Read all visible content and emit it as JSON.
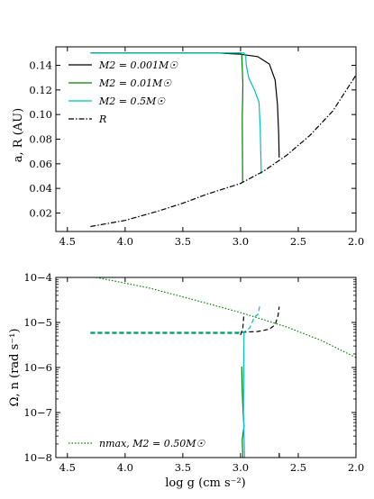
{
  "chart_data": [
    {
      "type": "line",
      "panel": "top",
      "ylabel": "a, R (AU)",
      "xlabel": "",
      "xlim": [
        4.6,
        2.0
      ],
      "ylim": [
        0.005,
        0.155
      ],
      "xticks": [
        4.5,
        4.0,
        3.5,
        3.0,
        2.5,
        2.0
      ],
      "xtick_labels": [
        "4.5",
        "4.0",
        "3.5",
        "3.0",
        "2.5",
        "2.0"
      ],
      "yticks": [
        0.02,
        0.04,
        0.06,
        0.08,
        0.1,
        0.12,
        0.14
      ],
      "ytick_labels": [
        "0.02",
        "0.04",
        "0.06",
        "0.08",
        "0.10",
        "0.12",
        "0.14"
      ],
      "legend_position": "top-left",
      "series": [
        {
          "name": "M2 = 0.001M☉",
          "color": "#000000",
          "style": "solid",
          "points": [
            [
              4.3,
              0.15
            ],
            [
              3.2,
              0.15
            ],
            [
              3.0,
              0.149
            ],
            [
              2.85,
              0.147
            ],
            [
              2.75,
              0.141
            ],
            [
              2.7,
              0.128
            ],
            [
              2.68,
              0.108
            ],
            [
              2.67,
              0.085
            ],
            [
              2.665,
              0.065
            ]
          ]
        },
        {
          "name": "M2 = 0.01M☉",
          "color": "#008000",
          "style": "solid",
          "points": [
            [
              4.3,
              0.15
            ],
            [
              3.0,
              0.15
            ],
            [
              2.99,
              0.149
            ],
            [
              2.985,
              0.138
            ],
            [
              2.98,
              0.125
            ],
            [
              2.982,
              0.112
            ],
            [
              2.985,
              0.098
            ],
            [
              2.983,
              0.06
            ],
            [
              2.982,
              0.045
            ]
          ]
        },
        {
          "name": "M2 = 0.5M☉",
          "color": "#00bfbf",
          "style": "solid",
          "points": [
            [
              4.3,
              0.15
            ],
            [
              3.05,
              0.15
            ],
            [
              2.97,
              0.15
            ],
            [
              2.955,
              0.147
            ],
            [
              2.95,
              0.14
            ],
            [
              2.93,
              0.13
            ],
            [
              2.88,
              0.12
            ],
            [
              2.84,
              0.11
            ],
            [
              2.83,
              0.09
            ],
            [
              2.825,
              0.07
            ],
            [
              2.82,
              0.052
            ]
          ]
        },
        {
          "name": "R",
          "color": "#000000",
          "style": "dashdot",
          "points": [
            [
              4.3,
              0.009
            ],
            [
              4.0,
              0.014
            ],
            [
              3.7,
              0.022
            ],
            [
              3.5,
              0.028
            ],
            [
              3.3,
              0.035
            ],
            [
              3.0,
              0.044
            ],
            [
              2.8,
              0.054
            ],
            [
              2.6,
              0.067
            ],
            [
              2.4,
              0.083
            ],
            [
              2.2,
              0.103
            ],
            [
              2.0,
              0.132
            ]
          ]
        }
      ],
      "legend": [
        {
          "label": "M2 = 0.001M☉",
          "color": "#000000",
          "style": "solid"
        },
        {
          "label": "M2 = 0.01M☉",
          "color": "#008000",
          "style": "solid"
        },
        {
          "label": "M2 = 0.5M☉",
          "color": "#00bfbf",
          "style": "solid"
        },
        {
          "label": "R",
          "color": "#000000",
          "style": "dashdot"
        }
      ]
    },
    {
      "type": "line",
      "panel": "bottom",
      "ylabel": "Ω, n (rad s⁻¹)",
      "xlabel": "log g (cm s⁻²)",
      "xlim": [
        4.6,
        2.0
      ],
      "ylim_log10": [
        -8,
        -4
      ],
      "xticks": [
        4.5,
        4.0,
        3.5,
        3.0,
        2.5,
        2.0
      ],
      "xtick_labels": [
        "4.5",
        "4.0",
        "3.5",
        "3.0",
        "2.5",
        "2.0"
      ],
      "yticks_log10": [
        -8,
        -7,
        -6,
        -5,
        -4
      ],
      "ytick_labels": [
        "10−8",
        "10−7",
        "10−6",
        "10−5",
        "10−4"
      ],
      "legend_position": "bottom-left",
      "series": [
        {
          "name": "nmax, M2 = 0.50M☉",
          "color": "#008000",
          "style": "dotted",
          "points": [
            [
              4.25,
              -4.0
            ],
            [
              3.8,
              -4.23
            ],
            [
              3.4,
              -4.5
            ],
            [
              3.0,
              -4.78
            ],
            [
              2.6,
              -5.1
            ],
            [
              2.3,
              -5.4
            ],
            [
              2.0,
              -5.78
            ]
          ]
        },
        {
          "name": "omega_0001",
          "color": "#000000",
          "style": "solid",
          "points": [
            [
              2.665,
              -7.9
            ],
            [
              2.664,
              -8.05
            ]
          ]
        },
        {
          "name": "n_0001",
          "color": "#000000",
          "style": "dashed",
          "points": [
            [
              4.3,
              -5.22
            ],
            [
              3.0,
              -5.22
            ],
            [
              2.85,
              -5.2
            ],
            [
              2.75,
              -5.15
            ],
            [
              2.7,
              -5.05
            ],
            [
              2.675,
              -4.85
            ],
            [
              2.665,
              -4.65
            ]
          ]
        },
        {
          "name": "n_001",
          "color": "#008000",
          "style": "dashed",
          "points": [
            [
              4.3,
              -5.24
            ],
            [
              2.99,
              -5.24
            ]
          ]
        },
        {
          "name": "omega_001",
          "color": "#008000",
          "style": "solid",
          "points": [
            [
              2.99,
              -5.98
            ],
            [
              2.985,
              -6.5
            ],
            [
              2.978,
              -7.0
            ],
            [
              2.97,
              -7.3
            ],
            [
              2.985,
              -7.6
            ],
            [
              2.98,
              -8.05
            ]
          ]
        },
        {
          "name": "n_05",
          "color": "#00bfbf",
          "style": "dashed",
          "points": [
            [
              4.3,
              -5.22
            ],
            [
              3.0,
              -5.22
            ],
            [
              2.96,
              -5.2
            ],
            [
              2.92,
              -5.12
            ],
            [
              2.9,
              -5.0
            ],
            [
              2.88,
              -4.88
            ],
            [
              2.85,
              -4.82
            ],
            [
              2.83,
              -4.6
            ]
          ]
        },
        {
          "name": "omega_05",
          "color": "#00bfbf",
          "style": "solid",
          "points": [
            [
              2.97,
              -5.22
            ],
            [
              2.972,
              -6.0
            ],
            [
              2.975,
              -7.0
            ],
            [
              2.97,
              -7.5
            ],
            [
              2.965,
              -8.05
            ]
          ]
        },
        {
          "name": "x3_tail",
          "color": "#000000",
          "style": "dashed",
          "points": [
            [
              3.0,
              -5.28
            ],
            [
              2.98,
              -5.12
            ],
            [
              2.975,
              -4.95
            ],
            [
              2.97,
              -4.8
            ]
          ]
        }
      ],
      "legend": [
        {
          "label": "nmax, M2 = 0.50M☉",
          "color": "#008000",
          "style": "dotted"
        }
      ]
    }
  ]
}
